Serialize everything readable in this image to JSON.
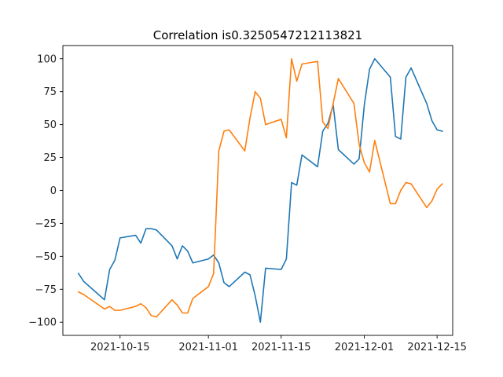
{
  "chart_data": {
    "type": "line",
    "title": "Correlation is0.3250547212113821",
    "xlabel": "",
    "ylabel": "",
    "x_axis": {
      "type": "date",
      "range": [
        "2021-10-04",
        "2021-12-18"
      ],
      "ticks": [
        "2021-10-15",
        "2021-11-01",
        "2021-11-15",
        "2021-12-01",
        "2021-12-15"
      ]
    },
    "y_axis": {
      "range": [
        -110,
        110
      ],
      "ticks": [
        100,
        75,
        50,
        25,
        0,
        -25,
        -50,
        -75,
        -100
      ],
      "tick_labels": [
        "100",
        "75",
        "50",
        "25",
        "0",
        "−25",
        "−50",
        "−75",
        "−100"
      ]
    },
    "grid": false,
    "legend": "none",
    "series": [
      {
        "color": "#1f77b4",
        "points": [
          [
            "2021-10-07",
            -63
          ],
          [
            "2021-10-08",
            -69
          ],
          [
            "2021-10-12",
            -83
          ],
          [
            "2021-10-13",
            -60
          ],
          [
            "2021-10-14",
            -53
          ],
          [
            "2021-10-15",
            -36
          ],
          [
            "2021-10-18",
            -34
          ],
          [
            "2021-10-19",
            -40
          ],
          [
            "2021-10-20",
            -29
          ],
          [
            "2021-10-21",
            -29
          ],
          [
            "2021-10-22",
            -30
          ],
          [
            "2021-10-25",
            -42
          ],
          [
            "2021-10-26",
            -52
          ],
          [
            "2021-10-27",
            -42
          ],
          [
            "2021-10-28",
            -46
          ],
          [
            "2021-10-29",
            -55
          ],
          [
            "2021-11-01",
            -52
          ],
          [
            "2021-11-02",
            -49
          ],
          [
            "2021-11-03",
            -55
          ],
          [
            "2021-11-04",
            -70
          ],
          [
            "2021-11-05",
            -73
          ],
          [
            "2021-11-08",
            -62
          ],
          [
            "2021-11-09",
            -64
          ],
          [
            "2021-11-10",
            -80
          ],
          [
            "2021-11-11",
            -100
          ],
          [
            "2021-11-12",
            -59
          ],
          [
            "2021-11-15",
            -60
          ],
          [
            "2021-11-16",
            -52
          ],
          [
            "2021-11-17",
            6
          ],
          [
            "2021-11-18",
            4
          ],
          [
            "2021-11-19",
            27
          ],
          [
            "2021-11-22",
            18
          ],
          [
            "2021-11-23",
            45
          ],
          [
            "2021-11-24",
            51
          ],
          [
            "2021-11-25",
            65
          ],
          [
            "2021-11-26",
            31
          ],
          [
            "2021-11-29",
            20
          ],
          [
            "2021-11-30",
            24
          ],
          [
            "2021-12-01",
            65
          ],
          [
            "2021-12-02",
            92
          ],
          [
            "2021-12-03",
            100
          ],
          [
            "2021-12-06",
            86
          ],
          [
            "2021-12-07",
            41
          ],
          [
            "2021-12-08",
            39
          ],
          [
            "2021-12-09",
            86
          ],
          [
            "2021-12-10",
            93
          ],
          [
            "2021-12-13",
            66
          ],
          [
            "2021-12-14",
            53
          ],
          [
            "2021-12-15",
            46
          ],
          [
            "2021-12-16",
            45
          ]
        ]
      },
      {
        "color": "#ff7f0e",
        "points": [
          [
            "2021-10-07",
            -77
          ],
          [
            "2021-10-08",
            -79
          ],
          [
            "2021-10-12",
            -90
          ],
          [
            "2021-10-13",
            -88
          ],
          [
            "2021-10-14",
            -91
          ],
          [
            "2021-10-15",
            -91
          ],
          [
            "2021-10-18",
            -88
          ],
          [
            "2021-10-19",
            -86
          ],
          [
            "2021-10-20",
            -89
          ],
          [
            "2021-10-21",
            -95
          ],
          [
            "2021-10-22",
            -96
          ],
          [
            "2021-10-25",
            -83
          ],
          [
            "2021-10-26",
            -87
          ],
          [
            "2021-10-27",
            -93
          ],
          [
            "2021-10-28",
            -93
          ],
          [
            "2021-10-29",
            -82
          ],
          [
            "2021-11-01",
            -73
          ],
          [
            "2021-11-02",
            -63
          ],
          [
            "2021-11-03",
            30
          ],
          [
            "2021-11-04",
            45
          ],
          [
            "2021-11-05",
            46
          ],
          [
            "2021-11-08",
            30
          ],
          [
            "2021-11-09",
            55
          ],
          [
            "2021-11-10",
            75
          ],
          [
            "2021-11-11",
            70
          ],
          [
            "2021-11-12",
            50
          ],
          [
            "2021-11-15",
            54
          ],
          [
            "2021-11-16",
            40
          ],
          [
            "2021-11-17",
            100
          ],
          [
            "2021-11-18",
            83
          ],
          [
            "2021-11-19",
            96
          ],
          [
            "2021-11-22",
            98
          ],
          [
            "2021-11-23",
            52
          ],
          [
            "2021-11-24",
            47
          ],
          [
            "2021-11-26",
            85
          ],
          [
            "2021-11-29",
            66
          ],
          [
            "2021-11-30",
            35
          ],
          [
            "2021-12-01",
            21
          ],
          [
            "2021-12-02",
            14
          ],
          [
            "2021-12-03",
            38
          ],
          [
            "2021-12-06",
            -10
          ],
          [
            "2021-12-07",
            -10
          ],
          [
            "2021-12-08",
            0
          ],
          [
            "2021-12-09",
            6
          ],
          [
            "2021-12-10",
            5
          ],
          [
            "2021-12-13",
            -13
          ],
          [
            "2021-12-14",
            -8
          ],
          [
            "2021-12-15",
            1
          ],
          [
            "2021-12-16",
            5
          ]
        ]
      }
    ]
  }
}
